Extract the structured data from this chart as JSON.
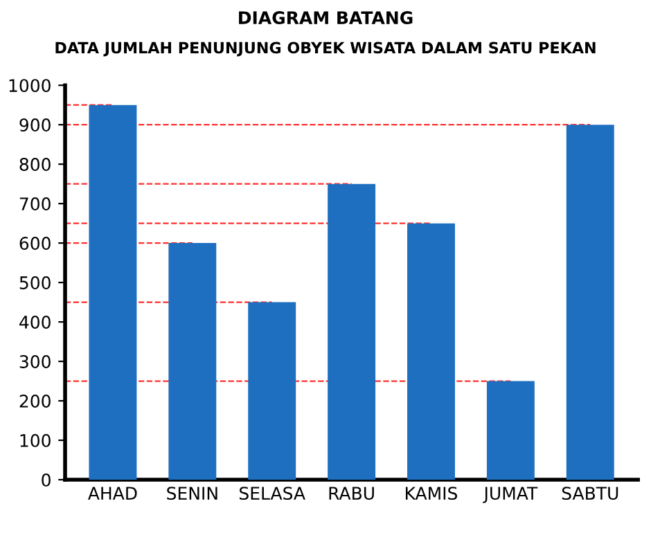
{
  "chart_data": {
    "type": "bar",
    "title": "DIAGRAM BATANG",
    "subtitle": "DATA JUMLAH PENUNJUNG OBYEK WISATA DALAM SATU PEKAN",
    "categories": [
      "AHAD",
      "SENIN",
      "SELASA",
      "RABU",
      "KAMIS",
      "JUMAT",
      "SABTU"
    ],
    "values": [
      950,
      600,
      450,
      750,
      650,
      250,
      900
    ],
    "color": "#1f6fc0",
    "ylim": [
      0,
      1000
    ],
    "yticks": [
      0,
      100,
      200,
      300,
      400,
      500,
      600,
      700,
      800,
      900,
      1000
    ],
    "grid": false,
    "legend": false,
    "ref_lines": [
      {
        "axis": "y",
        "value": 950,
        "color": "#ff3030",
        "line_style": "dashed"
      },
      {
        "axis": "y",
        "value": 900,
        "color": "#ff3030",
        "line_style": "dashed"
      },
      {
        "axis": "y",
        "value": 750,
        "color": "#ff3030",
        "line_style": "dashed"
      },
      {
        "axis": "y",
        "value": 650,
        "color": "#ff3030",
        "line_style": "dashed"
      },
      {
        "axis": "y",
        "value": 600,
        "color": "#ff3030",
        "line_style": "dashed"
      },
      {
        "axis": "y",
        "value": 450,
        "color": "#ff3030",
        "line_style": "dashed"
      },
      {
        "axis": "y",
        "value": 250,
        "color": "#ff3030",
        "line_style": "dashed"
      }
    ]
  }
}
